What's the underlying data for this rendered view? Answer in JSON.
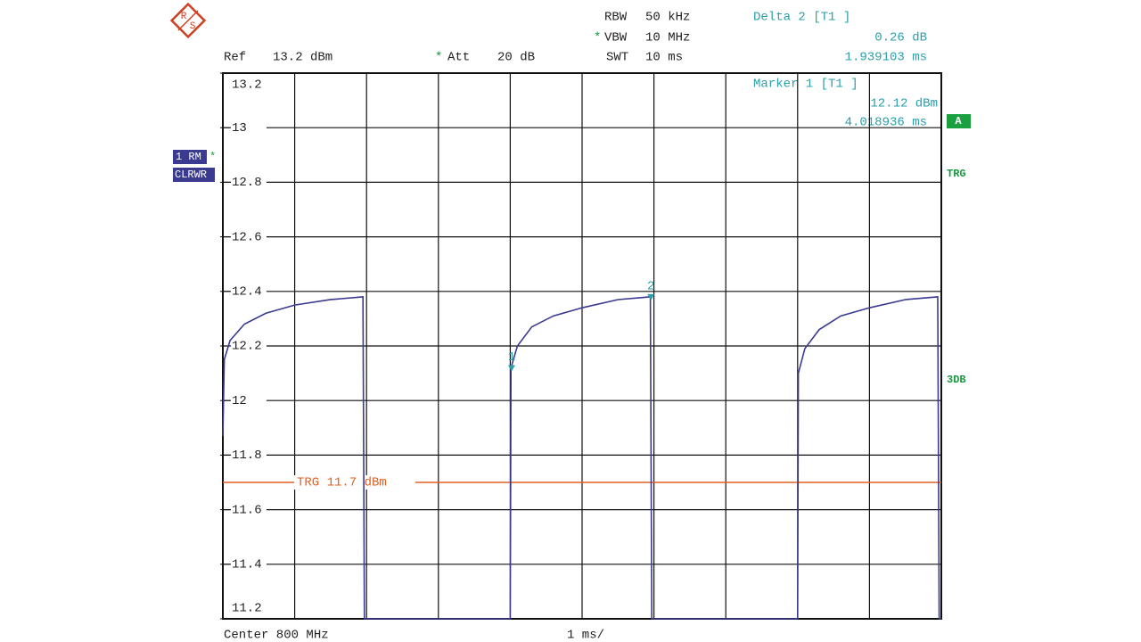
{
  "chart_data": {
    "type": "line",
    "header": {
      "rbw_label": "RBW",
      "rbw": "50 kHz",
      "vbw_star": "*",
      "vbw_label": "VBW",
      "vbw": "10 MHz",
      "swt_label": "SWT",
      "swt": "10 ms",
      "ref_label": "Ref",
      "ref": "13.2 dBm",
      "att_star": "*",
      "att_label": "Att",
      "att": "20 dB",
      "delta_title": "Delta 2 [T1 ]",
      "delta_value": "0.26 dB",
      "delta_time": "1.939103 ms",
      "marker_title": "Marker 1 [T1 ]",
      "marker_value": "12.12 dBm",
      "marker_time": "4.018936 ms"
    },
    "side": {
      "trace_mode": "CLRWR",
      "trace_star": "*",
      "a": "A",
      "trg": "TRG",
      "db": "3DB"
    },
    "footer": {
      "center": "Center 800 MHz",
      "span": "1 ms/"
    },
    "logo": {
      "r": "R",
      "s": "S"
    },
    "xlim": [
      0,
      10
    ],
    "xticks": [
      0,
      1,
      2,
      3,
      4,
      5,
      6,
      7,
      8,
      9,
      10
    ],
    "ylim": [
      11.2,
      13.2
    ],
    "yticks": [
      13.2,
      13,
      12.8,
      12.6,
      12.4,
      12.2,
      12,
      11.8,
      11.6,
      11.4,
      11.2
    ],
    "grid": true,
    "x": [
      0,
      0.02,
      0.1,
      0.3,
      0.6,
      1.0,
      1.5,
      1.95,
      1.97,
      4.0,
      4.01,
      4.1,
      4.3,
      4.6,
      5.0,
      5.5,
      5.95,
      5.97,
      8.0,
      8.01,
      8.1,
      8.3,
      8.6,
      9.0,
      9.5,
      9.95,
      9.97,
      10
    ],
    "series": [
      {
        "name": "1 RM",
        "color": "#3a3a90",
        "values": [
          11.87,
          12.15,
          12.22,
          12.28,
          12.32,
          12.35,
          12.37,
          12.38,
          11.2,
          11.2,
          12.12,
          12.2,
          12.27,
          12.31,
          12.34,
          12.37,
          12.38,
          11.2,
          11.2,
          12.1,
          12.19,
          12.26,
          12.31,
          12.34,
          12.37,
          12.38,
          11.2,
          11.2
        ]
      }
    ],
    "trigger": {
      "value": 11.7,
      "label": "TRG 11.7 dBm",
      "color": "#e06020"
    },
    "markers": [
      {
        "label": "1",
        "x": 4.018936,
        "y": 12.12
      },
      {
        "label": "2",
        "x": 5.958039,
        "y": 12.38
      }
    ],
    "marker_color": "#2a9fa8"
  }
}
